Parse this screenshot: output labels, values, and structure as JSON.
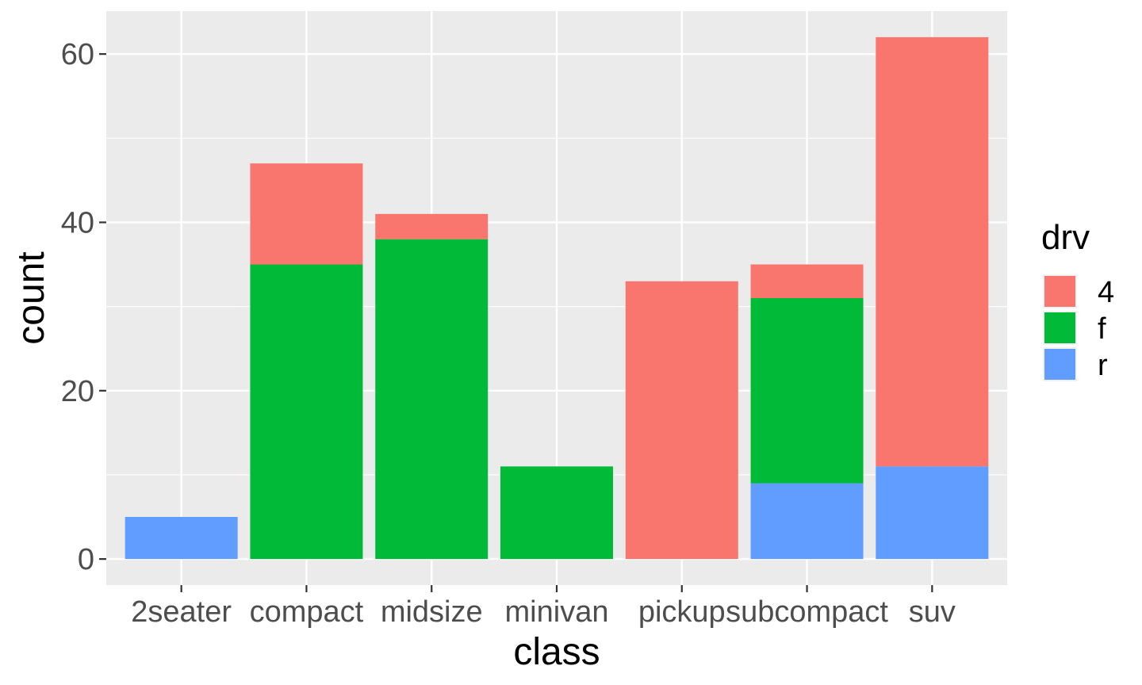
{
  "chart_data": {
    "type": "bar",
    "stacked": true,
    "categories": [
      "2seater",
      "compact",
      "midsize",
      "minivan",
      "pickup",
      "subcompact",
      "suv"
    ],
    "series": [
      {
        "name": "4",
        "color": "#F8766D",
        "values": [
          0,
          12,
          3,
          0,
          33,
          4,
          51
        ]
      },
      {
        "name": "f",
        "color": "#00BA38",
        "values": [
          0,
          35,
          38,
          11,
          0,
          22,
          0
        ]
      },
      {
        "name": "r",
        "color": "#619CFF",
        "values": [
          5,
          0,
          0,
          0,
          0,
          9,
          11
        ]
      }
    ],
    "stack_order_bottom_to_top": [
      "r",
      "f",
      "4"
    ],
    "xlabel": "class",
    "ylabel": "count",
    "ylim": [
      -3.1,
      65.1
    ],
    "yticks": [
      0,
      20,
      40,
      60
    ],
    "grid": true,
    "legend": {
      "title": "drv",
      "entries": [
        "4",
        "f",
        "r"
      ],
      "position": "right"
    },
    "colors": {
      "panel": "#EBEBEB",
      "grid": "#FFFFFF"
    }
  }
}
